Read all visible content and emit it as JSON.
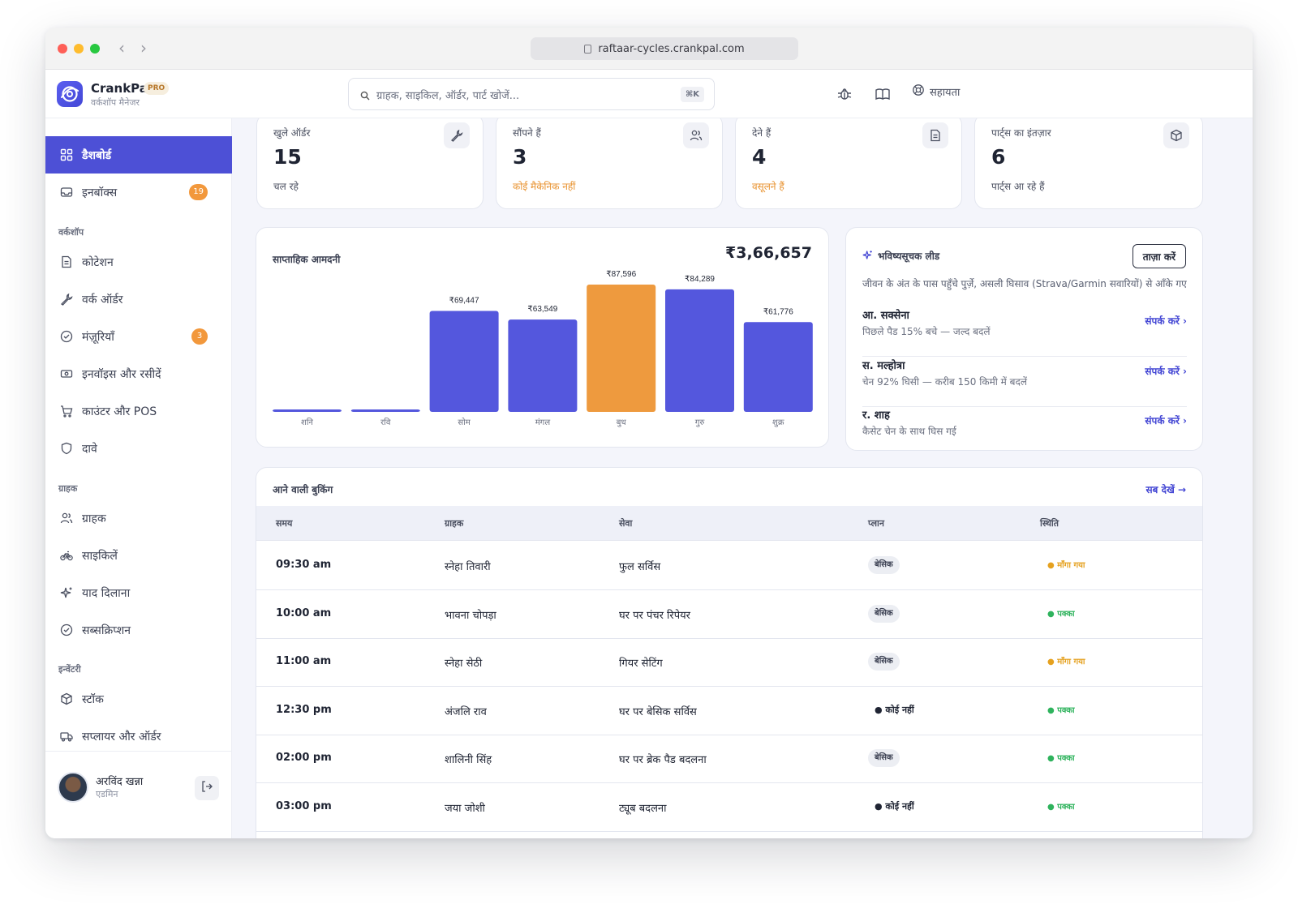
{
  "browser": {
    "url": "raftaar-cycles.crankpal.com"
  },
  "brand": {
    "name": "CrankPal",
    "badge": "PRO",
    "subtitle": "वर्कशॉप मैनेजर"
  },
  "search": {
    "placeholder": "ग्राहक, साइकिल, ऑर्डर, पार्ट खोजें...",
    "shortcut": "⌘K"
  },
  "topnav": {
    "help": "सहायता"
  },
  "sidebar": {
    "top_items": [
      {
        "label": "डैशबोर्ड",
        "icon": "grid-icon",
        "active": true
      },
      {
        "label": "इनबॉक्स",
        "icon": "inbox-icon",
        "count": "19"
      }
    ],
    "sections": [
      {
        "title": "वर्कशॉप",
        "items": [
          {
            "label": "कोटेशन",
            "icon": "file-icon"
          },
          {
            "label": "वर्क ऑर्डर",
            "icon": "wrench-icon"
          },
          {
            "label": "मंज़ूरियाँ",
            "icon": "check-circle-icon",
            "count": "3"
          },
          {
            "label": "इनवॉइस और रसीदें",
            "icon": "banknote-icon"
          },
          {
            "label": "काउंटर और POS",
            "icon": "cart-icon"
          },
          {
            "label": "दावे",
            "icon": "shield-icon"
          }
        ]
      },
      {
        "title": "ग्राहक",
        "items": [
          {
            "label": "ग्राहक",
            "icon": "users-icon"
          },
          {
            "label": "साइकिलें",
            "icon": "bike-icon"
          },
          {
            "label": "याद दिलाना",
            "icon": "sparkle-icon"
          },
          {
            "label": "सब्सक्रिप्शन",
            "icon": "check-circle-icon"
          }
        ]
      },
      {
        "title": "इन्वेंटरी",
        "items": [
          {
            "label": "स्टॉक",
            "icon": "box-icon"
          },
          {
            "label": "सप्लायर और ऑर्डर",
            "icon": "truck-icon"
          }
        ]
      }
    ],
    "user": {
      "name": "अरविंद खन्ना",
      "role": "एडमिन"
    }
  },
  "stats": [
    {
      "label": "खुले ऑर्डर",
      "value": "15",
      "sub": "चल रहे",
      "warn": false,
      "icon": "wrench-icon"
    },
    {
      "label": "सौंपने हैं",
      "value": "3",
      "sub": "कोई मैकेनिक नहीं",
      "warn": true,
      "icon": "users-icon"
    },
    {
      "label": "देने हैं",
      "value": "4",
      "sub": "वसूलने हैं",
      "warn": true,
      "icon": "file-icon"
    },
    {
      "label": "पार्ट्स का इंतज़ार",
      "value": "6",
      "sub": "पार्ट्स आ रहे हैं",
      "warn": false,
      "icon": "box-icon"
    }
  ],
  "chart_data": {
    "type": "bar",
    "title": "साप्ताहिक आमदनी",
    "total": "₹3,66,657",
    "categories": [
      "शनि",
      "रवि",
      "सोम",
      "मंगल",
      "बुध",
      "गुरु",
      "शुक्र"
    ],
    "values": [
      0,
      0,
      69447,
      63549,
      87596,
      84289,
      61776
    ],
    "value_labels": [
      "",
      "",
      "₹69,447",
      "₹63,549",
      "₹87,596",
      "₹84,289",
      "₹61,776"
    ],
    "highlight_index": 4,
    "ylim": [
      0,
      87596
    ],
    "colors": {
      "bar": "#5457dd",
      "highlight": "#ee9a3e"
    }
  },
  "leads": {
    "title": "भविष्यसूचक लीड",
    "refresh": "ताज़ा करें",
    "description": "जीवन के अंत के पास पहुँचे पुर्ज़े, असली घिसाव (Strava/Garmin सवारियों) से आँके गए",
    "items": [
      {
        "name": "आ. सक्सेना",
        "detail": "पिछले पैड 15% बचे — जल्द बदलें",
        "action": "संपर्क करें ›"
      },
      {
        "name": "स. मल्होत्रा",
        "detail": "चेन 92% घिसी — करीब 150 किमी में बदलें",
        "action": "संपर्क करें ›"
      },
      {
        "name": "र. शाह",
        "detail": "कैसेट चेन के साथ घिस गई",
        "action": "संपर्क करें ›"
      }
    ]
  },
  "bookings": {
    "title": "आने वाली बुकिंग",
    "see_all": "सब देखें →",
    "columns": [
      "समय",
      "ग्राहक",
      "सेवा",
      "प्लान",
      "स्थिति"
    ],
    "rows": [
      {
        "time": "09:30 am",
        "customer": "स्नेहा तिवारी",
        "service": "फुल सर्विस",
        "plan": "बेसिक",
        "plan_none": false,
        "status": "● माँगा गया",
        "status_color": "amber"
      },
      {
        "time": "10:00 am",
        "customer": "भावना चोपड़ा",
        "service": "घर पर पंचर रिपेयर",
        "plan": "बेसिक",
        "plan_none": false,
        "status": "● पक्का",
        "status_color": "green"
      },
      {
        "time": "11:00 am",
        "customer": "स्नेहा सेठी",
        "service": "गियर सेटिंग",
        "plan": "बेसिक",
        "plan_none": false,
        "status": "● माँगा गया",
        "status_color": "amber"
      },
      {
        "time": "12:30 pm",
        "customer": "अंजलि राव",
        "service": "घर पर बेसिक सर्विस",
        "plan": "● कोई नहीं",
        "plan_none": true,
        "status": "● पक्का",
        "status_color": "green"
      },
      {
        "time": "02:00 pm",
        "customer": "शालिनी सिंह",
        "service": "घर पर ब्रेक पैड बदलना",
        "plan": "बेसिक",
        "plan_none": false,
        "status": "● पक्का",
        "status_color": "green"
      },
      {
        "time": "03:00 pm",
        "customer": "जया जोशी",
        "service": "ट्यूब बदलना",
        "plan": "● कोई नहीं",
        "plan_none": true,
        "status": "● पक्का",
        "status_color": "green"
      }
    ]
  }
}
